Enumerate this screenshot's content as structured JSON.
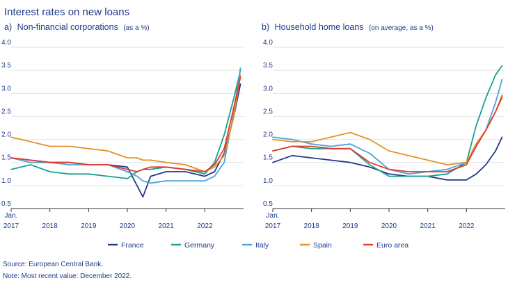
{
  "title": "Interest rates on new loans",
  "source": "Source: European Central Bank.",
  "note": "Note: Most recent value: December 2022.",
  "colors": {
    "France": "#1f3a8a",
    "Germany": "#1aa091",
    "Italy": "#4ba3d8",
    "Spain": "#e3912a",
    "Euro area": "#e03a2b",
    "text": "#1f3a8a",
    "grid": "#d9d9d9",
    "axis": "#333333"
  },
  "legend": [
    "France",
    "Germany",
    "Italy",
    "Spain",
    "Euro area"
  ],
  "chart_data": [
    {
      "type": "line",
      "panel_label": "a)",
      "title": "Non-financial corporations",
      "title_note": "(as a %)",
      "xlabel": "",
      "ylabel": "",
      "ylim": [
        0.5,
        4.0
      ],
      "yticks": [
        "0.5",
        "1.0",
        "1.5",
        "2.0",
        "2.5",
        "3.0",
        "3.5",
        "4.0"
      ],
      "xlim": [
        2017.0,
        2023.0
      ],
      "xticks": [
        {
          "value": 2017.0,
          "label": "Jan.",
          "label2": "2017"
        },
        {
          "value": 2018.0,
          "label": "2018"
        },
        {
          "value": 2019.0,
          "label": "2019"
        },
        {
          "value": 2020.0,
          "label": "2020"
        },
        {
          "value": 2021.0,
          "label": "2021"
        },
        {
          "value": 2022.0,
          "label": "2022"
        }
      ],
      "x": [
        2017.0,
        2017.5,
        2018.0,
        2018.5,
        2019.0,
        2019.5,
        2020.0,
        2020.25,
        2020.4,
        2020.6,
        2021.0,
        2021.5,
        2022.0,
        2022.25,
        2022.5,
        2022.75,
        2022.92
      ],
      "series": [
        {
          "name": "France",
          "values": [
            1.6,
            1.55,
            1.5,
            1.5,
            1.45,
            1.45,
            1.4,
            1.0,
            0.75,
            1.2,
            1.3,
            1.3,
            1.2,
            1.3,
            1.7,
            2.5,
            3.2
          ]
        },
        {
          "name": "Germany",
          "values": [
            1.35,
            1.45,
            1.3,
            1.25,
            1.25,
            1.2,
            1.15,
            1.3,
            1.35,
            1.35,
            1.4,
            1.35,
            1.25,
            1.5,
            2.1,
            2.9,
            3.5
          ]
        },
        {
          "name": "Italy",
          "values": [
            1.6,
            1.5,
            1.5,
            1.45,
            1.45,
            1.45,
            1.3,
            1.2,
            1.1,
            1.05,
            1.1,
            1.1,
            1.1,
            1.2,
            1.5,
            2.6,
            3.55
          ]
        },
        {
          "name": "Spain",
          "values": [
            2.05,
            1.95,
            1.85,
            1.85,
            1.8,
            1.75,
            1.6,
            1.6,
            1.55,
            1.55,
            1.5,
            1.45,
            1.3,
            1.4,
            1.65,
            2.5,
            3.4
          ]
        },
        {
          "name": "Euro area",
          "values": [
            1.6,
            1.55,
            1.5,
            1.5,
            1.45,
            1.45,
            1.35,
            1.3,
            1.35,
            1.4,
            1.4,
            1.35,
            1.3,
            1.45,
            1.8,
            2.7,
            3.35
          ]
        }
      ]
    },
    {
      "type": "line",
      "panel_label": "b)",
      "title": "Household home loans",
      "title_note": "(on average, as a %)",
      "xlabel": "",
      "ylabel": "",
      "ylim": [
        0.5,
        4.0
      ],
      "yticks": [
        "0.5",
        "1.0",
        "1.5",
        "2.0",
        "2.5",
        "3.0",
        "3.5",
        "4.0"
      ],
      "xlim": [
        2017.0,
        2023.0
      ],
      "xticks": [
        {
          "value": 2017.0,
          "label": "Jan.",
          "label2": "2017"
        },
        {
          "value": 2018.0,
          "label": "2018"
        },
        {
          "value": 2019.0,
          "label": "2019"
        },
        {
          "value": 2020.0,
          "label": "2020"
        },
        {
          "value": 2021.0,
          "label": "2021"
        },
        {
          "value": 2022.0,
          "label": "2022"
        }
      ],
      "x": [
        2017.0,
        2017.5,
        2018.0,
        2018.5,
        2019.0,
        2019.5,
        2020.0,
        2020.5,
        2021.0,
        2021.5,
        2022.0,
        2022.25,
        2022.5,
        2022.75,
        2022.92
      ],
      "series": [
        {
          "name": "France",
          "values": [
            1.5,
            1.65,
            1.6,
            1.55,
            1.5,
            1.4,
            1.25,
            1.2,
            1.2,
            1.12,
            1.12,
            1.25,
            1.45,
            1.75,
            2.05
          ]
        },
        {
          "name": "Germany",
          "values": [
            1.75,
            1.85,
            1.8,
            1.8,
            1.8,
            1.45,
            1.2,
            1.2,
            1.2,
            1.25,
            1.5,
            2.3,
            2.9,
            3.4,
            3.6
          ]
        },
        {
          "name": "Italy",
          "values": [
            2.05,
            2.0,
            1.9,
            1.85,
            1.9,
            1.7,
            1.35,
            1.25,
            1.3,
            1.35,
            1.5,
            1.9,
            2.2,
            2.8,
            3.3
          ]
        },
        {
          "name": "Spain",
          "values": [
            2.0,
            1.95,
            1.95,
            2.05,
            2.15,
            2.0,
            1.75,
            1.65,
            1.55,
            1.45,
            1.5,
            1.9,
            2.2,
            2.6,
            2.9
          ]
        },
        {
          "name": "Euro area",
          "values": [
            1.75,
            1.85,
            1.85,
            1.8,
            1.8,
            1.5,
            1.35,
            1.3,
            1.3,
            1.3,
            1.45,
            1.85,
            2.2,
            2.6,
            2.95
          ]
        }
      ]
    }
  ]
}
